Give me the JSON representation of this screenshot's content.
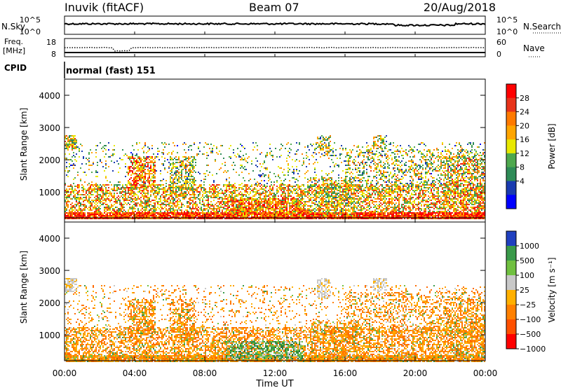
{
  "header": {
    "station": "Inuvik (fitACF)",
    "beam": "Beam 07",
    "date": "20/Aug/2018"
  },
  "top_panels": {
    "nsky_label": "N.Sky",
    "nsearch_label": "N.Search",
    "nsky_ticks": [
      "10^5",
      "10^0"
    ],
    "nsearch_ticks": [
      "10^5",
      "10^0"
    ],
    "freq_label_1": "Freq.",
    "freq_label_2": "[MHz]",
    "freq_ticks": [
      "18",
      "8"
    ],
    "nave_label": "Nave",
    "nave_ticks": [
      "60",
      "0"
    ],
    "cpid_label": "CPID",
    "cpid_value": "normal (fast) 151"
  },
  "chart_data": [
    {
      "type": "heatmap",
      "name": "power",
      "ylabel": "Slant Range [km]",
      "colorbar_label": "Power [dB]",
      "colorbar_ticks": [
        "28",
        "24",
        "20",
        "16",
        "12",
        "8",
        "4"
      ],
      "colorbar_colors": [
        "#ff0000",
        "#e8331a",
        "#ff7a00",
        "#ffa500",
        "#e8e800",
        "#4ea84e",
        "#2e8b57",
        "#1a3bb0",
        "#0000ff"
      ],
      "ylim": [
        200,
        4500
      ],
      "yticks": [
        "4000",
        "3000",
        "2000",
        "1000"
      ],
      "xlim": [
        "00:00",
        "24:00"
      ]
    },
    {
      "type": "heatmap",
      "name": "velocity",
      "ylabel": "Slant Range [km]",
      "colorbar_label": "Velocity [m s⁻¹]",
      "colorbar_ticks": [
        "1000",
        "500",
        "100",
        "25",
        "−25",
        "−100",
        "−500",
        "−1000"
      ],
      "colorbar_colors": [
        "#2040c0",
        "#3a9a4a",
        "#70c040",
        "#c8c8c8",
        "#ffb000",
        "#ff8000",
        "#ff5000",
        "#ff0000"
      ],
      "ylim": [
        200,
        4500
      ],
      "yticks": [
        "4000",
        "3000",
        "2000",
        "1000"
      ],
      "xlim": [
        "00:00",
        "24:00"
      ]
    }
  ],
  "x_axis": {
    "ticks": [
      "00:00",
      "04:00",
      "08:00",
      "12:00",
      "16:00",
      "20:00",
      "00:00"
    ],
    "label": "Time UT"
  }
}
